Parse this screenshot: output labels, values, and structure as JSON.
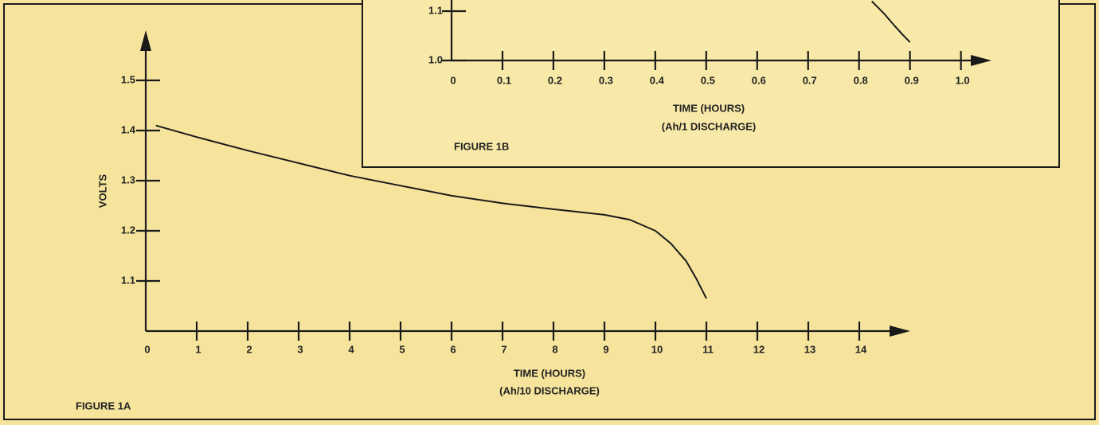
{
  "chart_data": [
    {
      "type": "line",
      "title": "FIGURE 1A",
      "ylabel": "VOLTS",
      "xlabel": [
        "TIME (HOURS)",
        "(Ah/10 DISCHARGE)"
      ],
      "xlim": [
        0,
        15
      ],
      "ylim": [
        1.0,
        1.6
      ],
      "xticks": [
        0,
        1,
        2,
        3,
        4,
        5,
        6,
        7,
        8,
        9,
        10,
        11,
        12,
        13,
        14
      ],
      "yticks": [
        1.1,
        1.2,
        1.3,
        1.4,
        1.5
      ],
      "x": [
        0.2,
        1,
        2,
        3,
        4,
        5,
        6,
        7,
        8,
        9,
        9.5,
        10,
        10.3,
        10.6,
        10.8,
        11
      ],
      "series": [
        {
          "color": "#1a1a1a",
          "values": [
            1.41,
            1.387,
            1.36,
            1.335,
            1.31,
            1.29,
            1.27,
            1.255,
            1.243,
            1.232,
            1.222,
            1.2,
            1.175,
            1.14,
            1.105,
            1.065
          ]
        }
      ]
    },
    {
      "type": "line",
      "title": "FIGURE 1B",
      "xlabel": [
        "TIME (HOURS)",
        "(Ah/1 DISCHARGE)"
      ],
      "xlim": [
        0,
        1.06
      ],
      "ylim": [
        1.0,
        1.12
      ],
      "xticks": [
        0,
        0.1,
        0.2,
        0.3,
        0.4,
        0.5,
        0.6,
        0.7,
        0.8,
        0.9,
        {
          "value": 1,
          "label": "1.0"
        }
      ],
      "yticks": [
        {
          "value": 1,
          "label": "1.0"
        },
        1.1
      ],
      "x": [
        0.825,
        0.85,
        0.87,
        0.885,
        0.9
      ],
      "series": [
        {
          "color": "#1a1a1a",
          "values": [
            1.12,
            1.094,
            1.07,
            1.053,
            1.037
          ]
        }
      ]
    }
  ]
}
